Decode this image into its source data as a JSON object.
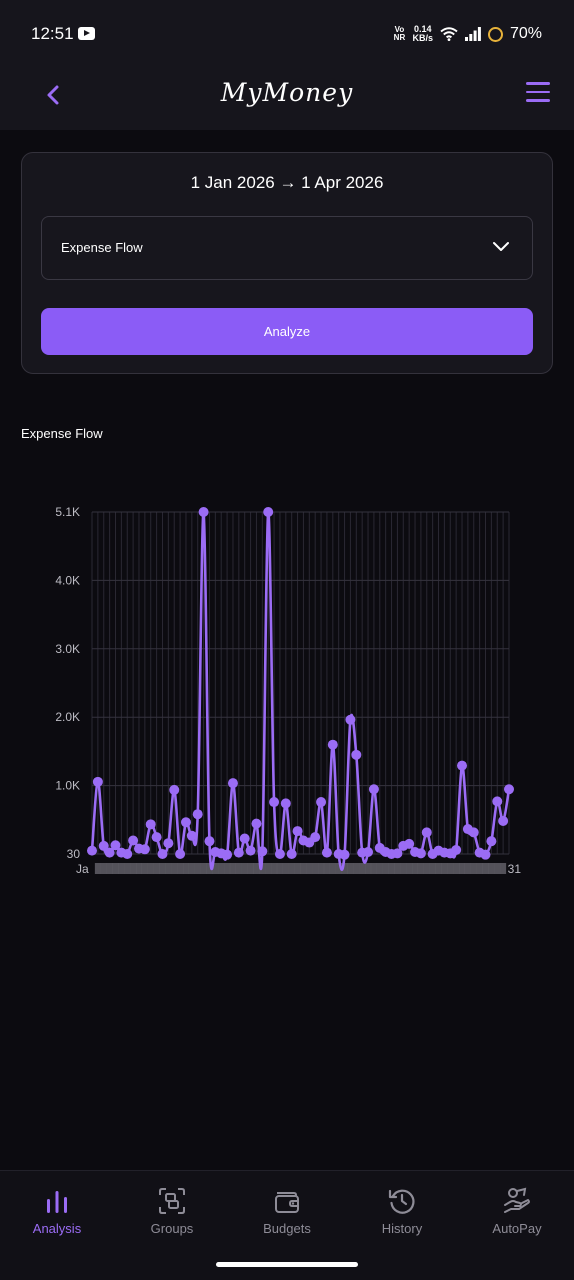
{
  "status_bar": {
    "time": "12:51",
    "vonr_top": "Vo",
    "vonr_bottom": "NR",
    "speed_value": "0.14",
    "speed_unit": "KB/s",
    "battery": "70%"
  },
  "header": {
    "title": "MyMoney"
  },
  "filters": {
    "date_range": "1 Jan 2026 → 1 Apr 2026",
    "flow_type": "Expense Flow",
    "analyze_label": "Analyze"
  },
  "chart_section": {
    "title": "Expense Flow"
  },
  "chart_data": {
    "type": "line",
    "title": "",
    "xlabel": "",
    "ylabel": "",
    "y_ticks": [
      "5.1K",
      "4.0K",
      "3.0K",
      "2.0K",
      "1.0K",
      "30"
    ],
    "ylim": [
      30,
      5100
    ],
    "grid": true,
    "series_color": "#9b6cf5",
    "x_label_first": "Ja",
    "x_label_last": "31",
    "series": [
      {
        "values": [
          80,
          1100,
          150,
          50,
          160,
          50,
          30,
          230,
          110,
          100,
          470,
          280,
          30,
          190,
          980,
          30,
          500,
          300,
          620,
          5100,
          220,
          60,
          40,
          20,
          1080,
          50,
          260,
          80,
          480,
          70,
          5100,
          800,
          30,
          780,
          30,
          370,
          230,
          200,
          280,
          800,
          50,
          1650,
          30,
          20,
          2020,
          1500,
          50,
          60,
          990,
          120,
          60,
          30,
          40,
          150,
          180,
          60,
          40,
          350,
          30,
          80,
          50,
          40,
          90,
          1340,
          400,
          350,
          50,
          20,
          220,
          810,
          520,
          990
        ]
      }
    ]
  },
  "bottom_nav": {
    "items": [
      {
        "label": "Analysis"
      },
      {
        "label": "Groups"
      },
      {
        "label": "Budgets"
      },
      {
        "label": "History"
      },
      {
        "label": "AutoPay"
      }
    ]
  }
}
